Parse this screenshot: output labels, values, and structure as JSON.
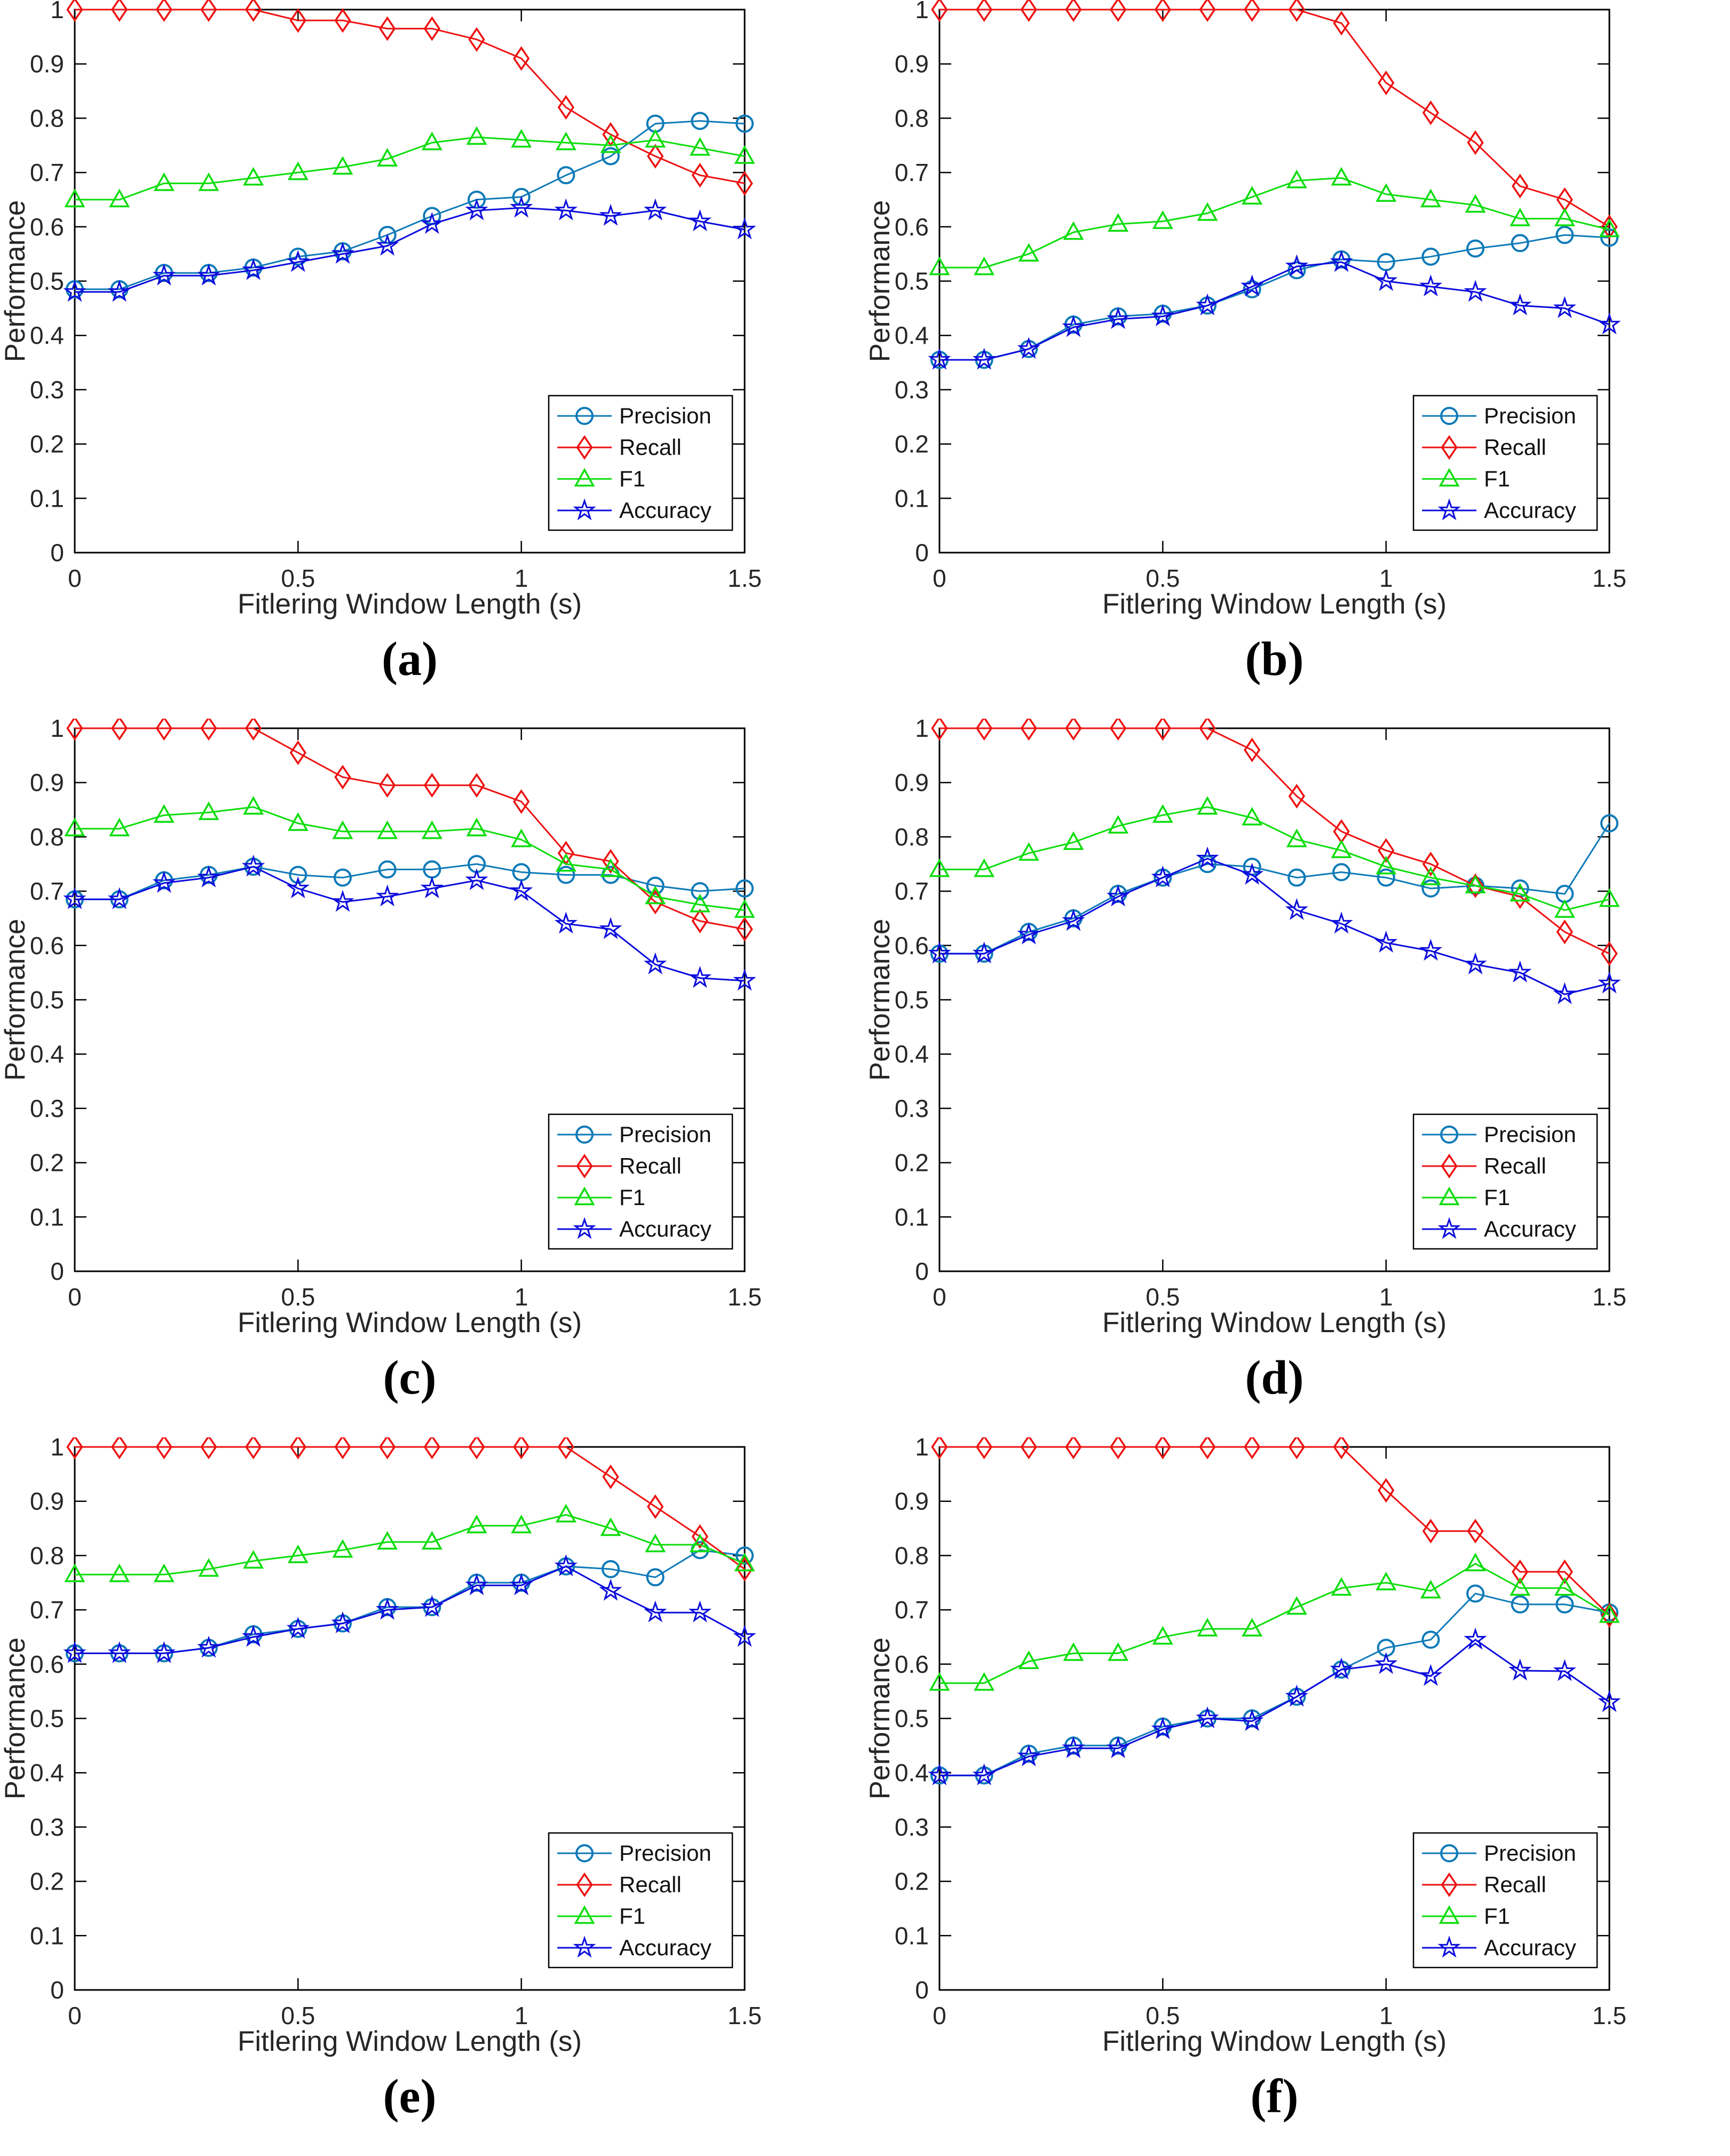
{
  "chart_data": [
    {
      "id": "a",
      "type": "line",
      "caption": "(a)",
      "xlabel": "Fitlering Window Length (s)",
      "ylabel": "Performance",
      "xlim": [
        0,
        1.5
      ],
      "ylim": [
        0,
        1
      ],
      "grid": false,
      "xticks": [
        0,
        0.5,
        1,
        1.5
      ],
      "xtick_labels": [
        "0",
        "0.5",
        "1",
        "1.5"
      ],
      "yticks": [
        0,
        0.1,
        0.2,
        0.3,
        0.4,
        0.5,
        0.6,
        0.7,
        0.8,
        0.9,
        1
      ],
      "ytick_labels": [
        "0",
        "0.1",
        "0.2",
        "0.3",
        "0.4",
        "0.5",
        "0.6",
        "0.7",
        "0.8",
        "0.9",
        "1"
      ],
      "legend_position": "lower right",
      "x": [
        0,
        0.1,
        0.2,
        0.3,
        0.4,
        0.5,
        0.6,
        0.7,
        0.8,
        0.9,
        1.0,
        1.1,
        1.2,
        1.3,
        1.4,
        1.5
      ],
      "series": [
        {
          "name": "Precision",
          "marker": "circle",
          "color": "#0e7ab8",
          "values": [
            0.485,
            0.485,
            0.515,
            0.515,
            0.525,
            0.545,
            0.555,
            0.585,
            0.62,
            0.65,
            0.655,
            0.695,
            0.73,
            0.79,
            0.795,
            0.79
          ]
        },
        {
          "name": "Recall",
          "marker": "diamond",
          "color": "#ee1111",
          "values": [
            1,
            1,
            1,
            1,
            1,
            0.98,
            0.98,
            0.965,
            0.965,
            0.945,
            0.91,
            0.82,
            0.77,
            0.73,
            0.695,
            0.68
          ]
        },
        {
          "name": "F1",
          "marker": "triangle",
          "color": "#0ddd0d",
          "values": [
            0.65,
            0.65,
            0.68,
            0.68,
            0.69,
            0.7,
            0.71,
            0.725,
            0.755,
            0.765,
            0.76,
            0.755,
            0.75,
            0.76,
            0.745,
            0.73
          ]
        },
        {
          "name": "Accuracy",
          "marker": "star",
          "color": "#0c0cdd",
          "values": [
            0.48,
            0.48,
            0.51,
            0.51,
            0.52,
            0.535,
            0.55,
            0.565,
            0.605,
            0.63,
            0.635,
            0.63,
            0.62,
            0.63,
            0.61,
            0.595
          ]
        }
      ]
    },
    {
      "id": "b",
      "type": "line",
      "caption": "(b)",
      "xlabel": "Fitlering Window Length (s)",
      "ylabel": "Performance",
      "xlim": [
        0,
        1.5
      ],
      "ylim": [
        0,
        1
      ],
      "grid": false,
      "xticks": [
        0,
        0.5,
        1,
        1.5
      ],
      "xtick_labels": [
        "0",
        "0.5",
        "1",
        "1.5"
      ],
      "yticks": [
        0,
        0.1,
        0.2,
        0.3,
        0.4,
        0.5,
        0.6,
        0.7,
        0.8,
        0.9,
        1
      ],
      "ytick_labels": [
        "0",
        "0.1",
        "0.2",
        "0.3",
        "0.4",
        "0.5",
        "0.6",
        "0.7",
        "0.8",
        "0.9",
        "1"
      ],
      "legend_position": "lower right",
      "x": [
        0,
        0.1,
        0.2,
        0.3,
        0.4,
        0.5,
        0.6,
        0.7,
        0.8,
        0.9,
        1.0,
        1.1,
        1.2,
        1.3,
        1.4,
        1.5
      ],
      "series": [
        {
          "name": "Precision",
          "marker": "circle",
          "color": "#0e7ab8",
          "values": [
            0.355,
            0.355,
            0.375,
            0.42,
            0.435,
            0.44,
            0.455,
            0.485,
            0.52,
            0.54,
            0.535,
            0.545,
            0.56,
            0.57,
            0.585,
            0.58
          ]
        },
        {
          "name": "Recall",
          "marker": "diamond",
          "color": "#ee1111",
          "values": [
            1,
            1,
            1,
            1,
            1,
            1,
            1,
            1,
            1,
            0.975,
            0.865,
            0.81,
            0.755,
            0.675,
            0.65,
            0.6
          ]
        },
        {
          "name": "F1",
          "marker": "triangle",
          "color": "#0ddd0d",
          "values": [
            0.525,
            0.525,
            0.55,
            0.59,
            0.605,
            0.61,
            0.625,
            0.655,
            0.685,
            0.69,
            0.66,
            0.65,
            0.64,
            0.615,
            0.615,
            0.595
          ]
        },
        {
          "name": "Accuracy",
          "marker": "star",
          "color": "#0c0cdd",
          "values": [
            0.355,
            0.355,
            0.375,
            0.415,
            0.43,
            0.435,
            0.455,
            0.49,
            0.527,
            0.535,
            0.5,
            0.49,
            0.48,
            0.455,
            0.45,
            0.42
          ]
        }
      ]
    },
    {
      "id": "c",
      "type": "line",
      "caption": "(c)",
      "xlabel": "Fitlering Window Length (s)",
      "ylabel": "Performance",
      "xlim": [
        0,
        1.5
      ],
      "ylim": [
        0,
        1
      ],
      "grid": false,
      "xticks": [
        0,
        0.5,
        1,
        1.5
      ],
      "xtick_labels": [
        "0",
        "0.5",
        "1",
        "1.5"
      ],
      "yticks": [
        0,
        0.1,
        0.2,
        0.3,
        0.4,
        0.5,
        0.6,
        0.7,
        0.8,
        0.9,
        1
      ],
      "ytick_labels": [
        "0",
        "0.1",
        "0.2",
        "0.3",
        "0.4",
        "0.5",
        "0.6",
        "0.7",
        "0.8",
        "0.9",
        "1"
      ],
      "legend_position": "lower right",
      "x": [
        0,
        0.1,
        0.2,
        0.3,
        0.4,
        0.5,
        0.6,
        0.7,
        0.8,
        0.9,
        1.0,
        1.1,
        1.2,
        1.3,
        1.4,
        1.5
      ],
      "series": [
        {
          "name": "Precision",
          "marker": "circle",
          "color": "#0e7ab8",
          "values": [
            0.685,
            0.685,
            0.72,
            0.73,
            0.745,
            0.73,
            0.725,
            0.74,
            0.74,
            0.75,
            0.735,
            0.73,
            0.73,
            0.71,
            0.7,
            0.705
          ]
        },
        {
          "name": "Recall",
          "marker": "diamond",
          "color": "#ee1111",
          "values": [
            1,
            1,
            1,
            1,
            1,
            0.955,
            0.91,
            0.895,
            0.895,
            0.895,
            0.865,
            0.77,
            0.755,
            0.68,
            0.645,
            0.63
          ]
        },
        {
          "name": "F1",
          "marker": "triangle",
          "color": "#0ddd0d",
          "values": [
            0.815,
            0.815,
            0.84,
            0.845,
            0.855,
            0.825,
            0.81,
            0.81,
            0.81,
            0.815,
            0.795,
            0.75,
            0.74,
            0.69,
            0.675,
            0.665
          ]
        },
        {
          "name": "Accuracy",
          "marker": "star",
          "color": "#0c0cdd",
          "values": [
            0.685,
            0.685,
            0.715,
            0.725,
            0.745,
            0.705,
            0.68,
            0.69,
            0.705,
            0.72,
            0.7,
            0.64,
            0.63,
            0.565,
            0.54,
            0.535
          ]
        }
      ]
    },
    {
      "id": "d",
      "type": "line",
      "caption": "(d)",
      "xlabel": "Fitlering Window Length (s)",
      "ylabel": "Performance",
      "xlim": [
        0,
        1.5
      ],
      "ylim": [
        0,
        1
      ],
      "grid": false,
      "xticks": [
        0,
        0.5,
        1,
        1.5
      ],
      "xtick_labels": [
        "0",
        "0.5",
        "1",
        "1.5"
      ],
      "yticks": [
        0,
        0.1,
        0.2,
        0.3,
        0.4,
        0.5,
        0.6,
        0.7,
        0.8,
        0.9,
        1
      ],
      "ytick_labels": [
        "0",
        "0.1",
        "0.2",
        "0.3",
        "0.4",
        "0.5",
        "0.6",
        "0.7",
        "0.8",
        "0.9",
        "1"
      ],
      "legend_position": "lower right",
      "x": [
        0,
        0.1,
        0.2,
        0.3,
        0.4,
        0.5,
        0.6,
        0.7,
        0.8,
        0.9,
        1.0,
        1.1,
        1.2,
        1.3,
        1.4,
        1.5
      ],
      "series": [
        {
          "name": "Precision",
          "marker": "circle",
          "color": "#0e7ab8",
          "values": [
            0.585,
            0.585,
            0.625,
            0.65,
            0.695,
            0.725,
            0.75,
            0.745,
            0.725,
            0.735,
            0.725,
            0.705,
            0.71,
            0.705,
            0.695,
            0.825
          ]
        },
        {
          "name": "Recall",
          "marker": "diamond",
          "color": "#ee1111",
          "values": [
            1,
            1,
            1,
            1,
            1,
            1,
            1,
            0.96,
            0.875,
            0.81,
            0.775,
            0.75,
            0.71,
            0.69,
            0.625,
            0.585
          ]
        },
        {
          "name": "F1",
          "marker": "triangle",
          "color": "#0ddd0d",
          "values": [
            0.74,
            0.74,
            0.77,
            0.79,
            0.82,
            0.84,
            0.855,
            0.835,
            0.795,
            0.775,
            0.745,
            0.725,
            0.71,
            0.695,
            0.665,
            0.685
          ]
        },
        {
          "name": "Accuracy",
          "marker": "star",
          "color": "#0c0cdd",
          "values": [
            0.585,
            0.585,
            0.62,
            0.645,
            0.69,
            0.725,
            0.76,
            0.73,
            0.665,
            0.64,
            0.605,
            0.59,
            0.565,
            0.55,
            0.51,
            0.53
          ]
        }
      ]
    },
    {
      "id": "e",
      "type": "line",
      "caption": "(e)",
      "xlabel": "Fitlering Window Length (s)",
      "ylabel": "Performance",
      "xlim": [
        0,
        1.5
      ],
      "ylim": [
        0,
        1
      ],
      "grid": false,
      "xticks": [
        0,
        0.5,
        1,
        1.5
      ],
      "xtick_labels": [
        "0",
        "0.5",
        "1",
        "1.5"
      ],
      "yticks": [
        0,
        0.1,
        0.2,
        0.3,
        0.4,
        0.5,
        0.6,
        0.7,
        0.8,
        0.9,
        1
      ],
      "ytick_labels": [
        "0",
        "0.1",
        "0.2",
        "0.3",
        "0.4",
        "0.5",
        "0.6",
        "0.7",
        "0.8",
        "0.9",
        "1"
      ],
      "legend_position": "lower right",
      "x": [
        0,
        0.1,
        0.2,
        0.3,
        0.4,
        0.5,
        0.6,
        0.7,
        0.8,
        0.9,
        1.0,
        1.1,
        1.2,
        1.3,
        1.4,
        1.5
      ],
      "series": [
        {
          "name": "Precision",
          "marker": "circle",
          "color": "#0e7ab8",
          "values": [
            0.62,
            0.62,
            0.62,
            0.63,
            0.655,
            0.665,
            0.675,
            0.705,
            0.705,
            0.75,
            0.75,
            0.78,
            0.775,
            0.76,
            0.81,
            0.8
          ]
        },
        {
          "name": "Recall",
          "marker": "diamond",
          "color": "#ee1111",
          "values": [
            1,
            1,
            1,
            1,
            1,
            1,
            1,
            1,
            1,
            1,
            1,
            1,
            0.945,
            0.89,
            0.835,
            0.775
          ]
        },
        {
          "name": "F1",
          "marker": "triangle",
          "color": "#0ddd0d",
          "values": [
            0.765,
            0.765,
            0.765,
            0.775,
            0.79,
            0.8,
            0.81,
            0.825,
            0.825,
            0.855,
            0.855,
            0.875,
            0.85,
            0.82,
            0.82,
            0.785
          ]
        },
        {
          "name": "Accuracy",
          "marker": "star",
          "color": "#0c0cdd",
          "values": [
            0.62,
            0.62,
            0.62,
            0.63,
            0.65,
            0.665,
            0.675,
            0.7,
            0.705,
            0.745,
            0.745,
            0.78,
            0.735,
            0.695,
            0.695,
            0.65
          ]
        }
      ]
    },
    {
      "id": "f",
      "type": "line",
      "caption": "(f)",
      "xlabel": "Fitlering Window Length (s)",
      "ylabel": "Performance",
      "xlim": [
        0,
        1.5
      ],
      "ylim": [
        0,
        1
      ],
      "grid": false,
      "xticks": [
        0,
        0.5,
        1,
        1.5
      ],
      "xtick_labels": [
        "0",
        "0.5",
        "1",
        "1.5"
      ],
      "yticks": [
        0,
        0.1,
        0.2,
        0.3,
        0.4,
        0.5,
        0.6,
        0.7,
        0.8,
        0.9,
        1
      ],
      "ytick_labels": [
        "0",
        "0.1",
        "0.2",
        "0.3",
        "0.4",
        "0.5",
        "0.6",
        "0.7",
        "0.8",
        "0.9",
        "1"
      ],
      "legend_position": "lower right",
      "x": [
        0,
        0.1,
        0.2,
        0.3,
        0.4,
        0.5,
        0.6,
        0.7,
        0.8,
        0.9,
        1.0,
        1.1,
        1.2,
        1.3,
        1.4,
        1.5
      ],
      "series": [
        {
          "name": "Precision",
          "marker": "circle",
          "color": "#0e7ab8",
          "values": [
            0.395,
            0.395,
            0.435,
            0.45,
            0.45,
            0.485,
            0.5,
            0.5,
            0.54,
            0.59,
            0.63,
            0.645,
            0.73,
            0.71,
            0.71,
            0.695
          ]
        },
        {
          "name": "Recall",
          "marker": "diamond",
          "color": "#ee1111",
          "values": [
            1,
            1,
            1,
            1,
            1,
            1,
            1,
            1,
            1,
            1,
            0.92,
            0.845,
            0.845,
            0.77,
            0.77,
            0.69
          ]
        },
        {
          "name": "F1",
          "marker": "triangle",
          "color": "#0ddd0d",
          "values": [
            0.565,
            0.565,
            0.605,
            0.62,
            0.62,
            0.65,
            0.665,
            0.665,
            0.705,
            0.74,
            0.75,
            0.735,
            0.785,
            0.74,
            0.74,
            0.69
          ]
        },
        {
          "name": "Accuracy",
          "marker": "star",
          "color": "#0c0cdd",
          "values": [
            0.395,
            0.395,
            0.43,
            0.445,
            0.445,
            0.48,
            0.5,
            0.495,
            0.54,
            0.59,
            0.6,
            0.578,
            0.645,
            0.588,
            0.587,
            0.53
          ]
        }
      ]
    }
  ]
}
